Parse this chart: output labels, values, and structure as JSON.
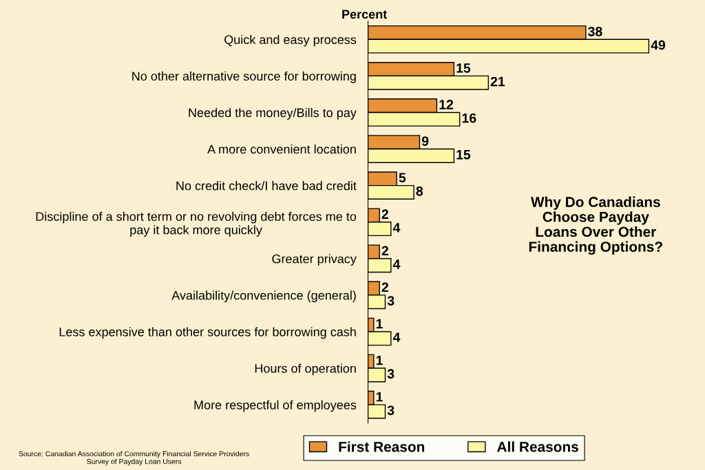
{
  "chart_data": {
    "type": "bar",
    "orientation": "horizontal",
    "title": "Why Do Canadians\nChoose Payday\nLoans Over Other\nFinancing Options?",
    "xlabel": "Percent",
    "categories": [
      "Quick and easy process",
      "No other alternative source for borrowing",
      "Needed the money/Bills to pay",
      "A more convenient location",
      "No credit check/I have bad credit",
      "Discipline of a short term or no revolving debt forces me to\npay it back more quickly",
      "Greater privacy",
      "Availability/convenience (general)",
      "Less expensive than other sources for borrowing cash",
      "Hours of operation",
      "More respectful of employees"
    ],
    "series": [
      {
        "name": "First Reason",
        "color": "#e8923a",
        "values": [
          38,
          15,
          12,
          9,
          5,
          2,
          2,
          2,
          1,
          1,
          1
        ]
      },
      {
        "name": "All Reasons",
        "color": "#fdf8a6",
        "values": [
          49,
          21,
          16,
          15,
          8,
          4,
          4,
          3,
          4,
          3,
          3
        ]
      }
    ],
    "data_labels": true,
    "legend": "bottom",
    "grid": false,
    "annotations": [
      "Source: Canadian Association of Community Financial Service Providers\nSurvey of Payday Loan Users"
    ]
  }
}
